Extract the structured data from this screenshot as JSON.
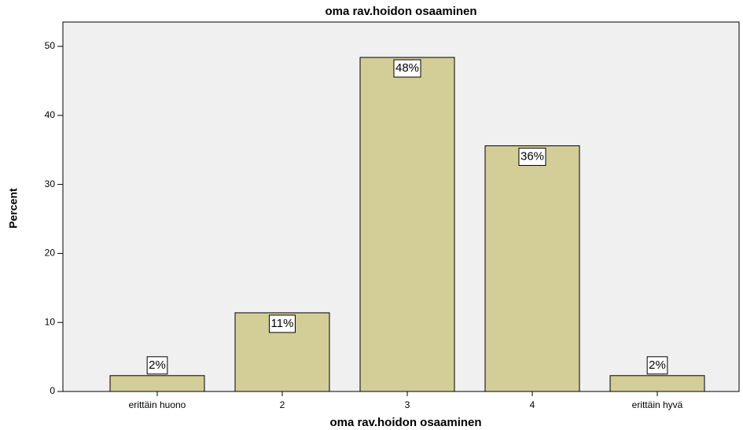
{
  "chart_data": {
    "type": "bar",
    "title": "oma rav.hoidon osaaminen",
    "x_label": "oma rav.hoidon osaaminen",
    "y_label": "Percent",
    "categories": [
      "erittäin huono",
      "2",
      "3",
      "4",
      "erittäin hyvä"
    ],
    "values": [
      2.3,
      11.4,
      48.4,
      35.6,
      2.3
    ],
    "value_labels": [
      "2%",
      "11%",
      "48%",
      "36%",
      "2%"
    ],
    "color": "#d3ce97",
    "ylim": [
      0,
      50
    ],
    "yticks": [
      0,
      10,
      20,
      30,
      40,
      50
    ],
    "grid": false
  }
}
